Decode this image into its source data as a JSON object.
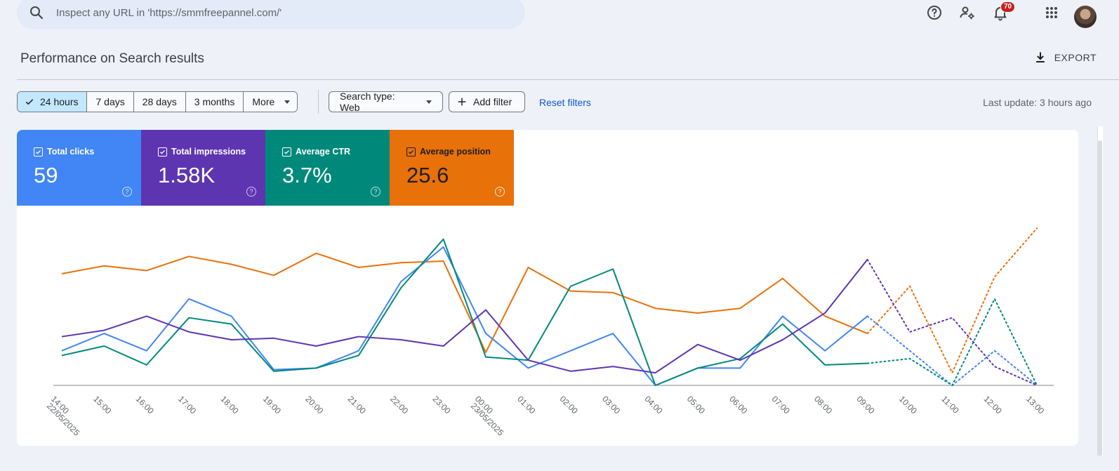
{
  "search": {
    "placeholder": "Inspect any URL in 'https://smmfreepannel.com/'"
  },
  "header": {
    "notification_count": "70"
  },
  "page": {
    "title": "Performance on Search results",
    "export_label": "EXPORT"
  },
  "filters": {
    "ranges": [
      "24 hours",
      "7 days",
      "28 days",
      "3 months",
      "More"
    ],
    "selected_range": "24 hours",
    "search_type": "Search type: Web",
    "add_filter": "Add filter",
    "reset": "Reset filters",
    "last_update": "Last update: 3 hours ago"
  },
  "metrics": [
    {
      "label": "Total clicks",
      "value": "59",
      "color": "#4285f4"
    },
    {
      "label": "Total impressions",
      "value": "1.58K",
      "color": "#5e35b1"
    },
    {
      "label": "Average CTR",
      "value": "3.7%",
      "color": "#00897b"
    },
    {
      "label": "Average position",
      "value": "25.6",
      "color": "#e8710a"
    }
  ],
  "chart_data": {
    "type": "line",
    "x": [
      "14:00",
      "15:00",
      "16:00",
      "17:00",
      "18:00",
      "19:00",
      "20:00",
      "21:00",
      "22:00",
      "23:00",
      "00:00",
      "01:00",
      "02:00",
      "03:00",
      "04:00",
      "05:00",
      "06:00",
      "07:00",
      "08:00",
      "09:00",
      "10:00",
      "11:00",
      "12:00",
      "13:00"
    ],
    "x_sublabels": {
      "0": "22/05/2025",
      "10": "23/05/2025"
    },
    "solid_until_index": 19,
    "note_dotted": "values after 09:00 drawn dotted",
    "ylim": [
      0,
      1
    ],
    "series": [
      {
        "color": "#e8710a",
        "values": [
          0.71,
          0.76,
          0.73,
          0.82,
          0.77,
          0.7,
          0.84,
          0.75,
          0.78,
          0.79,
          0.21,
          0.75,
          0.6,
          0.59,
          0.49,
          0.46,
          0.49,
          0.68,
          0.44,
          0.33,
          0.63,
          0.08,
          0.69,
          1.0
        ]
      },
      {
        "color": "#4285f4",
        "values": [
          0.22,
          0.33,
          0.22,
          0.55,
          0.44,
          0.1,
          0.11,
          0.22,
          0.66,
          0.88,
          0.33,
          0.11,
          0.22,
          0.33,
          0.0,
          0.11,
          0.11,
          0.44,
          0.22,
          0.44,
          0.22,
          0.0,
          0.22,
          0.0
        ]
      },
      {
        "color": "#00897b",
        "values": [
          0.19,
          0.25,
          0.13,
          0.43,
          0.39,
          0.09,
          0.11,
          0.19,
          0.62,
          0.93,
          0.18,
          0.16,
          0.63,
          0.74,
          0.0,
          0.11,
          0.17,
          0.39,
          0.13,
          0.14,
          0.17,
          0.0,
          0.55,
          0.0
        ]
      },
      {
        "color": "#5e35b1",
        "values": [
          0.31,
          0.35,
          0.44,
          0.34,
          0.29,
          0.3,
          0.25,
          0.31,
          0.29,
          0.25,
          0.48,
          0.16,
          0.09,
          0.12,
          0.08,
          0.26,
          0.16,
          0.29,
          0.46,
          0.8,
          0.34,
          0.43,
          0.12,
          0.0
        ]
      }
    ]
  }
}
